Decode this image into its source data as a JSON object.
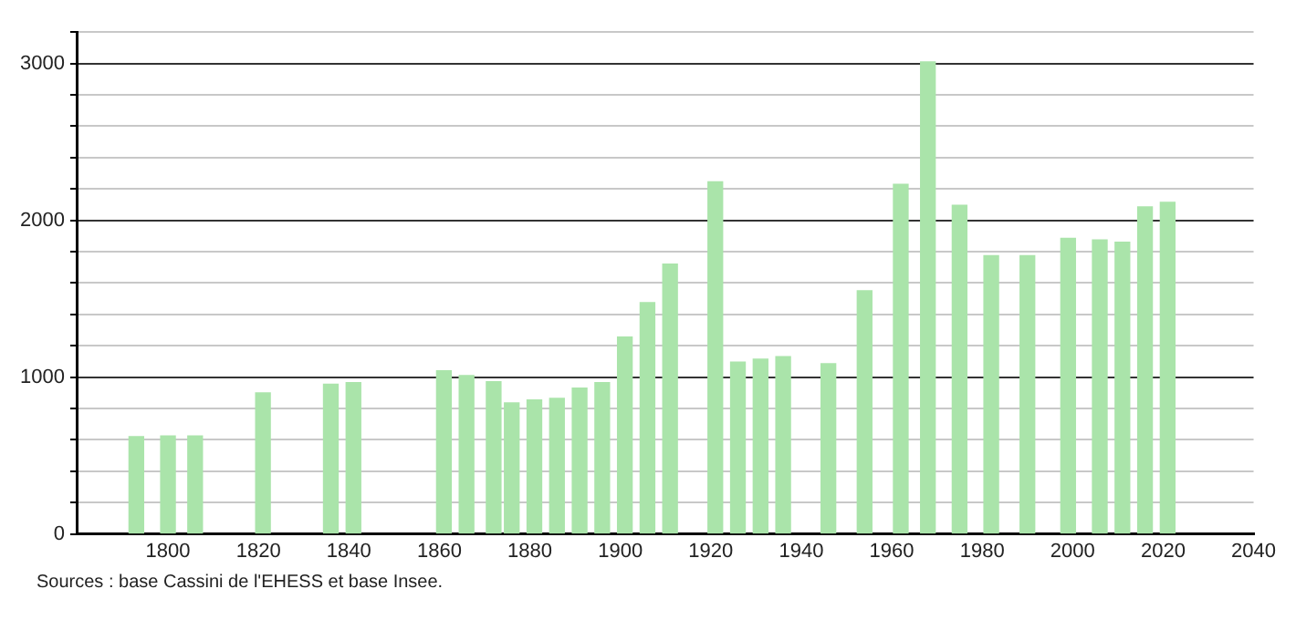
{
  "chart_data": {
    "type": "bar",
    "x": [
      1793,
      1800,
      1806,
      1821,
      1836,
      1841,
      1861,
      1866,
      1872,
      1876,
      1881,
      1886,
      1891,
      1896,
      1901,
      1906,
      1911,
      1921,
      1926,
      1931,
      1936,
      1946,
      1954,
      1962,
      1968,
      1975,
      1982,
      1990,
      1999,
      2006,
      2011,
      2016,
      2021
    ],
    "values": [
      620,
      625,
      625,
      900,
      955,
      965,
      1040,
      1010,
      970,
      835,
      855,
      865,
      930,
      965,
      1255,
      1475,
      1720,
      2245,
      1095,
      1115,
      1130,
      1085,
      1550,
      2230,
      3010,
      2095,
      1775,
      1775,
      1885,
      1875,
      1860,
      2085,
      2115
    ],
    "color": "#aae4aa",
    "xlim": [
      1780,
      2040
    ],
    "xticks": [
      1800,
      1820,
      1840,
      1860,
      1880,
      1900,
      1920,
      1940,
      1960,
      1980,
      2000,
      2020,
      2040
    ],
    "ylim": [
      0,
      3200
    ],
    "yticks": [
      0,
      {
        "value": 200,
        "label": null
      },
      {
        "value": 400,
        "label": null
      },
      {
        "value": 600,
        "label": null
      },
      {
        "value": 800,
        "label": null
      },
      1000,
      {
        "value": 1200,
        "label": null
      },
      {
        "value": 1400,
        "label": null
      },
      {
        "value": 1600,
        "label": null
      },
      {
        "value": 1800,
        "label": null
      },
      2000,
      {
        "value": 2200,
        "label": null
      },
      {
        "value": 2400,
        "label": null
      },
      {
        "value": 2600,
        "label": null
      },
      {
        "value": 2800,
        "label": null
      },
      3000,
      {
        "value": 3200,
        "label": null
      }
    ],
    "grid": "y",
    "annotations": [
      "Sources : base Cassini de l'EHESS et base Insee."
    ]
  }
}
